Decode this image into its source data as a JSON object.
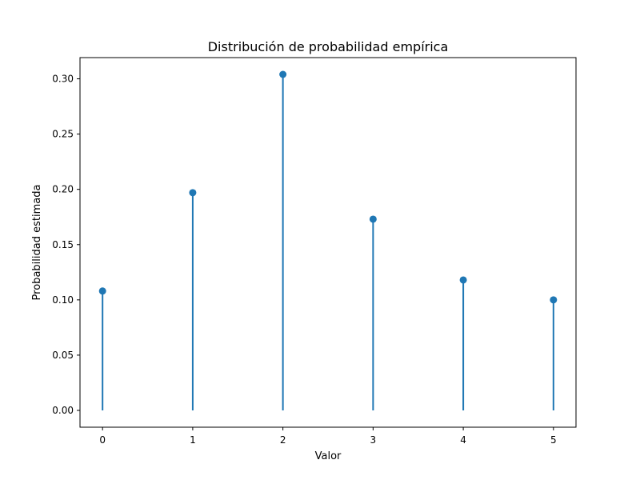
{
  "chart_data": {
    "type": "stem",
    "title": "Distribución de probabilidad empírica",
    "xlabel": "Valor",
    "ylabel": "Probabilidad estimada",
    "x": [
      0,
      1,
      2,
      3,
      4,
      5
    ],
    "values": [
      0.108,
      0.197,
      0.304,
      0.173,
      0.118,
      0.1
    ],
    "xlim": [
      -0.25,
      5.25
    ],
    "ylim": [
      -0.0152,
      0.3192
    ],
    "xticks": [
      0,
      1,
      2,
      3,
      4,
      5
    ],
    "xtick_labels": [
      "0",
      "1",
      "2",
      "3",
      "4",
      "5"
    ],
    "yticks": [
      0.0,
      0.05,
      0.1,
      0.15,
      0.2,
      0.25,
      0.3
    ],
    "ytick_labels": [
      "0.00",
      "0.05",
      "0.10",
      "0.15",
      "0.20",
      "0.25",
      "0.30"
    ],
    "grid": false,
    "legend": "none",
    "series_color": "#1f77b4"
  }
}
